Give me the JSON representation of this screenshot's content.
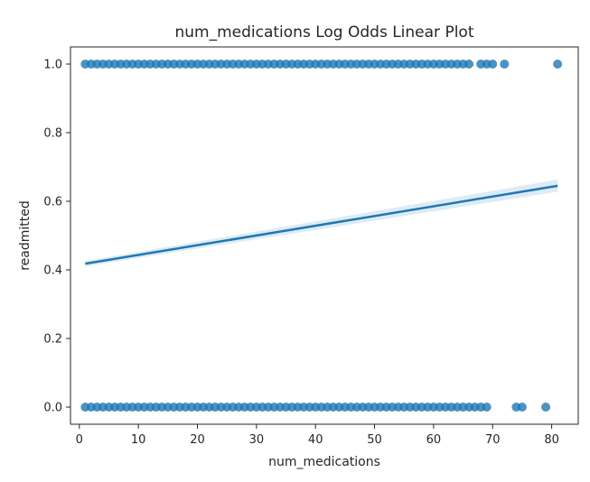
{
  "chart_data": {
    "type": "scatter",
    "title": "num_medications Log Odds Linear Plot",
    "xlabel": "num_medications",
    "ylabel": "readmitted",
    "xlim": [
      -1.5,
      84.5
    ],
    "ylim": [
      -0.05,
      1.05
    ],
    "x_ticks": [
      0,
      10,
      20,
      30,
      40,
      50,
      60,
      70,
      80
    ],
    "y_ticks": [
      0.0,
      0.2,
      0.4,
      0.6,
      0.8,
      1.0
    ],
    "x_tick_labels": [
      "0",
      "10",
      "20",
      "30",
      "40",
      "50",
      "60",
      "70",
      "80"
    ],
    "y_tick_labels": [
      "0.0",
      "0.2",
      "0.4",
      "0.6",
      "0.8",
      "1.0"
    ],
    "grid": false,
    "series": [
      {
        "kind": "scatter",
        "color": "#1f77b4",
        "points_y1": {
          "y": 1,
          "x": [
            1,
            2,
            3,
            4,
            5,
            6,
            7,
            8,
            9,
            10,
            11,
            12,
            13,
            14,
            15,
            16,
            17,
            18,
            19,
            20,
            21,
            22,
            23,
            24,
            25,
            26,
            27,
            28,
            29,
            30,
            31,
            32,
            33,
            34,
            35,
            36,
            37,
            38,
            39,
            40,
            41,
            42,
            43,
            44,
            45,
            46,
            47,
            48,
            49,
            50,
            51,
            52,
            53,
            54,
            55,
            56,
            57,
            58,
            59,
            60,
            61,
            62,
            63,
            64,
            65,
            66,
            68,
            69,
            70,
            72,
            81
          ]
        },
        "points_y0": {
          "y": 0,
          "x": [
            1,
            2,
            3,
            4,
            5,
            6,
            7,
            8,
            9,
            10,
            11,
            12,
            13,
            14,
            15,
            16,
            17,
            18,
            19,
            20,
            21,
            22,
            23,
            24,
            25,
            26,
            27,
            28,
            29,
            30,
            31,
            32,
            33,
            34,
            35,
            36,
            37,
            38,
            39,
            40,
            41,
            42,
            43,
            44,
            45,
            46,
            47,
            48,
            49,
            50,
            51,
            52,
            53,
            54,
            55,
            56,
            57,
            58,
            59,
            60,
            61,
            62,
            63,
            64,
            65,
            66,
            67,
            68,
            69,
            74,
            75,
            79
          ]
        }
      },
      {
        "kind": "line",
        "color": "#1f77b4",
        "x": [
          1,
          81
        ],
        "y": [
          0.418,
          0.645
        ],
        "ci_lower": [
          0.41,
          0.628
        ],
        "ci_upper": [
          0.426,
          0.663
        ]
      }
    ]
  }
}
